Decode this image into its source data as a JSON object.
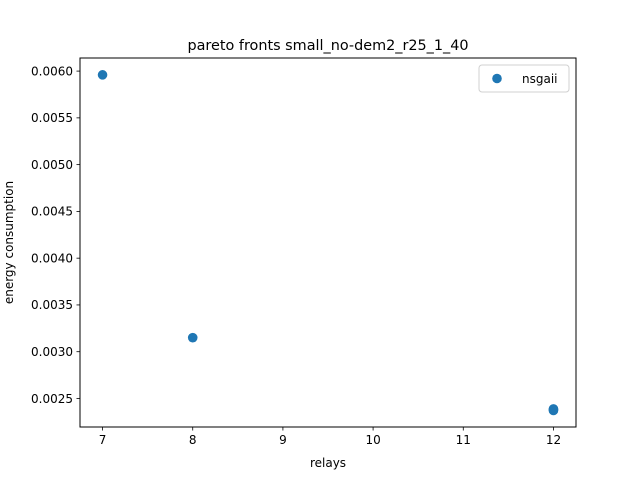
{
  "chart_data": {
    "type": "scatter",
    "title": "pareto fronts small_no-dem2_r25_1_40",
    "xlabel": "relays",
    "ylabel": "energy consumption",
    "xlim": [
      6.75,
      12.25
    ],
    "ylim": [
      0.002195,
      0.00614
    ],
    "xticks": [
      7,
      8,
      9,
      10,
      11,
      12
    ],
    "xtick_labels": [
      "7",
      "8",
      "9",
      "10",
      "11",
      "12"
    ],
    "yticks": [
      0.0025,
      0.003,
      0.0035,
      0.004,
      0.0045,
      0.005,
      0.0055,
      0.006
    ],
    "ytick_labels": [
      "0.0025",
      "0.0030",
      "0.0035",
      "0.0040",
      "0.0045",
      "0.0050",
      "0.0055",
      "0.0060"
    ],
    "grid": false,
    "legend_position": "upper right",
    "series": [
      {
        "name": "nsgaii",
        "color": "#1f77b4",
        "marker": "circle",
        "points": [
          {
            "x": 7,
            "y": 0.00596
          },
          {
            "x": 8,
            "y": 0.00315
          },
          {
            "x": 12,
            "y": 0.00238
          },
          {
            "x": 12,
            "y": 0.002372
          },
          {
            "x": 12,
            "y": 0.002388
          }
        ]
      }
    ]
  }
}
